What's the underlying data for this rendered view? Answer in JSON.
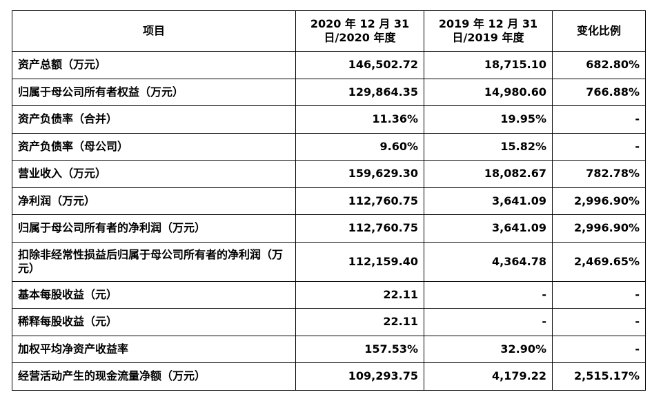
{
  "headers": [
    "项目",
    "2020年12月31日/2020年度",
    "2019年12月31日/2019年度",
    "变化比例"
  ],
  "header_lines": [
    [
      "项目"
    ],
    [
      "2020 年 12 月 31",
      "日/2020 年度"
    ],
    [
      "2019 年 12 月 31",
      "日/2019 年度"
    ],
    [
      "变化比例"
    ]
  ],
  "rows": [
    {
      "item": "资产总额（万元）",
      "y2020": "146,502.72",
      "y2019": "18,715.10",
      "change": "682.80%"
    },
    {
      "item": "归属于母公司所有者权益（万元）",
      "y2020": "129,864.35",
      "y2019": "14,980.60",
      "change": "766.88%"
    },
    {
      "item": "资产负债率（合并）",
      "y2020": "11.36%",
      "y2019": "19.95%",
      "change": "-"
    },
    {
      "item": "资产负债率（母公司）",
      "y2020": "9.60%",
      "y2019": "15.82%",
      "change": "-"
    },
    {
      "item": "营业收入（万元）",
      "y2020": "159,629.30",
      "y2019": "18,082.67",
      "change": "782.78%"
    },
    {
      "item": "净利润（万元）",
      "y2020": "112,760.75",
      "y2019": "3,641.09",
      "change": "2,996.90%"
    },
    {
      "item": "归属于母公司所有者的净利润（万元）",
      "y2020": "112,760.75",
      "y2019": "3,641.09",
      "change": "2,996.90%"
    },
    {
      "item": "扣除非经常性损益后归属于母公司所有者的净利润（万元）",
      "y2020": "112,159.40",
      "y2019": "4,364.78",
      "change": "2,469.65%"
    },
    {
      "item": "基本每股收益（元）",
      "y2020": "22.11",
      "y2019": "-",
      "change": "-"
    },
    {
      "item": "稀释每股收益（元）",
      "y2020": "22.11",
      "y2019": "-",
      "change": "-"
    },
    {
      "item": "加权平均净资产收益率",
      "y2020": "157.53%",
      "y2019": "32.90%",
      "change": "-"
    },
    {
      "item": "经营活动产生的现金流量净额（万元）",
      "y2020": "109,293.75",
      "y2019": "4,179.22",
      "change": "2,515.17%"
    }
  ]
}
